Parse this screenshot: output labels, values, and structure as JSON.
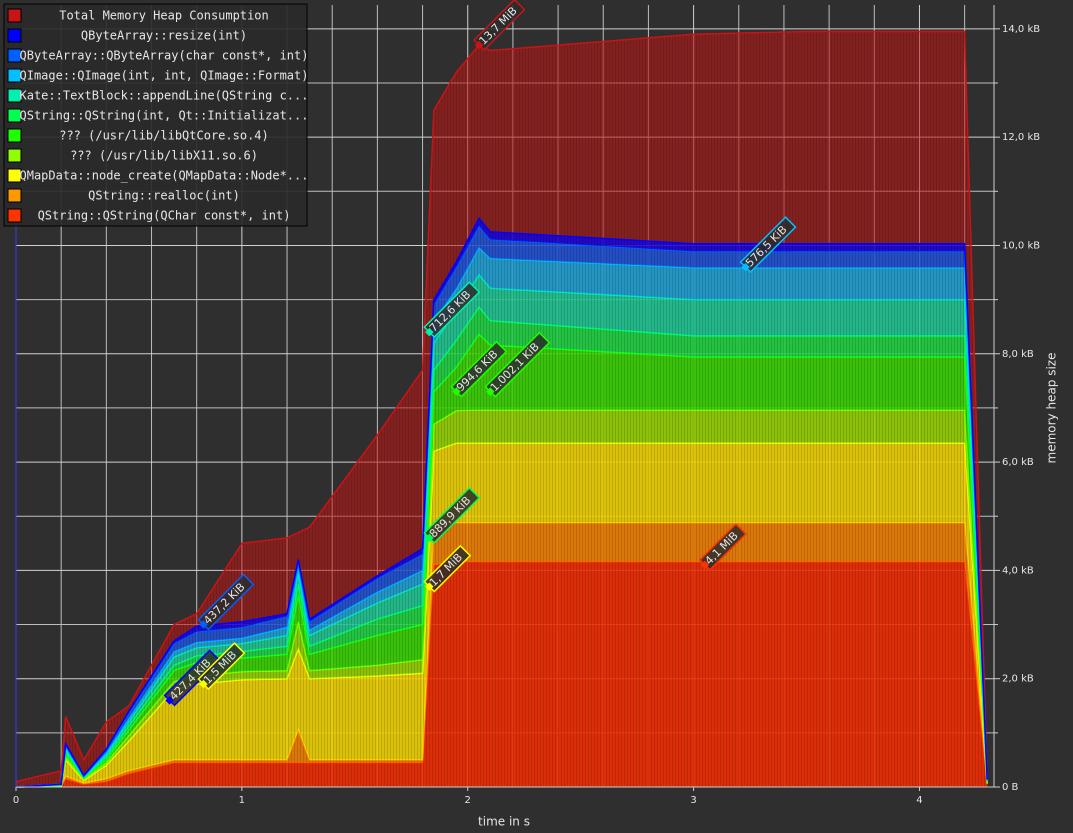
{
  "chart_data": {
    "type": "stacked-area",
    "xlabel": "time in s",
    "ylabel": "memory heap size",
    "x": [
      0,
      0.2,
      0.22,
      0.3,
      0.4,
      0.5,
      0.7,
      0.8,
      1.0,
      1.2,
      1.25,
      1.3,
      1.6,
      1.8,
      1.85,
      1.95,
      2.05,
      2.1,
      3.0,
      3.5,
      4.2,
      4.3
    ],
    "total": {
      "name": "Total Memory Heap Consumption",
      "color": "#c81414",
      "values": [
        0.1,
        0.3,
        1.3,
        0.5,
        1.2,
        1.5,
        3.0,
        3.2,
        4.5,
        4.6,
        4.7,
        4.8,
        6.5,
        7.7,
        12.5,
        13.2,
        13.7,
        13.6,
        13.9,
        13.95,
        13.95,
        0.1
      ]
    },
    "series": [
      {
        "name": "QByteArray::resize(int)",
        "color": "#0000ff",
        "values": [
          0,
          0,
          0.03,
          0.01,
          0.03,
          0.03,
          0.05,
          0.1,
          0.1,
          0.05,
          0.05,
          0.05,
          0.05,
          0.1,
          0.1,
          0.1,
          0.14,
          0.14,
          0.14,
          0.14,
          0.14,
          0.01
        ]
      },
      {
        "name": "QByteArray::QByteArray(char const*, int)",
        "color": "#0060ff",
        "values": [
          0,
          0,
          0.04,
          0.01,
          0.04,
          0.1,
          0.15,
          0.2,
          0.2,
          0.2,
          0.1,
          0.15,
          0.25,
          0.3,
          0.3,
          0.4,
          0.4,
          0.35,
          0.3,
          0.3,
          0.3,
          0.01
        ]
      },
      {
        "name": "QImage::QImage(int, int, QImage::Format)",
        "color": "#00c0ff",
        "values": [
          0,
          0,
          0.03,
          0.01,
          0.03,
          0.06,
          0.1,
          0.1,
          0.1,
          0.15,
          0.1,
          0.1,
          0.2,
          0.25,
          0.4,
          0.4,
          0.5,
          0.55,
          0.59,
          0.59,
          0.59,
          0.01
        ]
      },
      {
        "name": "Kate::TextBlock::appendLine(QString c...",
        "color": "#00f0b0",
        "values": [
          0,
          0.01,
          0.05,
          0.01,
          0.05,
          0.08,
          0.15,
          0.15,
          0.15,
          0.2,
          0.2,
          0.2,
          0.3,
          0.4,
          0.5,
          0.55,
          0.6,
          0.6,
          0.67,
          0.67,
          0.67,
          0.01
        ]
      },
      {
        "name": "QString::QString(int, Qt::Initializat...",
        "color": "#00ff50",
        "values": [
          0,
          0.01,
          0.05,
          0.01,
          0.05,
          0.08,
          0.1,
          0.12,
          0.12,
          0.15,
          0.2,
          0.15,
          0.3,
          0.35,
          0.4,
          0.5,
          0.5,
          0.45,
          0.39,
          0.39,
          0.39,
          0.01
        ]
      },
      {
        "name": "??? (/usr/lib/libQtCore.so.4)",
        "color": "#20ff00",
        "values": [
          0,
          0.01,
          0.05,
          0.02,
          0.05,
          0.1,
          0.2,
          0.25,
          0.25,
          0.3,
          0.5,
          0.3,
          0.55,
          0.65,
          0.6,
          0.8,
          1.4,
          1.2,
          0.98,
          0.98,
          0.98,
          0.01
        ]
      },
      {
        "name": "??? (/usr/lib/libX11.so.6)",
        "color": "#90ff00",
        "values": [
          0,
          0,
          0.05,
          0.02,
          0.05,
          0.1,
          0.15,
          0.15,
          0.15,
          0.15,
          0.5,
          0.15,
          0.2,
          0.25,
          0.5,
          0.6,
          0.61,
          0.61,
          0.61,
          0.61,
          0.61,
          0.01
        ]
      },
      {
        "name": "QMapData::node_create(QMapData::Node*...",
        "color": "#ffff00",
        "values": [
          0,
          0,
          0.3,
          0.05,
          0.25,
          0.55,
          1.3,
          1.4,
          1.48,
          1.5,
          1.5,
          1.5,
          1.55,
          1.6,
          1.4,
          1.47,
          1.47,
          1.47,
          1.47,
          1.47,
          1.47,
          0.01
        ]
      },
      {
        "name": "QString::realloc(int)",
        "color": "#ff9900",
        "values": [
          0,
          0,
          0.05,
          0.02,
          0.05,
          0.05,
          0.05,
          0.05,
          0.05,
          0.05,
          0.6,
          0.05,
          0.05,
          0.05,
          0.7,
          0.72,
          0.72,
          0.72,
          0.72,
          0.72,
          0.72,
          0.01
        ]
      },
      {
        "name": "QString::QString(QChar const*, int)",
        "color": "#ff3300",
        "values": [
          0,
          0.02,
          0.15,
          0.05,
          0.1,
          0.25,
          0.45,
          0.45,
          0.45,
          0.45,
          0.45,
          0.45,
          0.45,
          0.45,
          4.1,
          4.16,
          4.16,
          4.16,
          4.16,
          4.16,
          4.16,
          0.05
        ]
      }
    ],
    "annotations": [
      {
        "text": "13,7 MiB",
        "x": 2.05,
        "y": 13.7,
        "series": -1
      },
      {
        "text": "576,5 KiB",
        "x": 3.23,
        "y": 9.6,
        "series": 2
      },
      {
        "text": "712,6 KiB",
        "x": 1.83,
        "y": 8.4,
        "series": 3
      },
      {
        "text": "994,6 KiB",
        "x": 1.95,
        "y": 7.3,
        "series": 5
      },
      {
        "text": "1.002,1 KiB",
        "x": 2.1,
        "y": 7.3,
        "series": 5
      },
      {
        "text": "889,9 KiB",
        "x": 1.83,
        "y": 4.6,
        "series": 4
      },
      {
        "text": "1,7 MiB",
        "x": 1.83,
        "y": 3.7,
        "series": 7
      },
      {
        "text": "4,1 MiB",
        "x": 3.05,
        "y": 4.1,
        "series": 9
      },
      {
        "text": "437,2 KiB",
        "x": 0.83,
        "y": 3.0,
        "series": 1
      },
      {
        "text": "427,4 KiB",
        "x": 0.68,
        "y": 1.6,
        "series": 0
      },
      {
        "text": "1,5 MiB",
        "x": 0.83,
        "y": 1.9,
        "series": 7
      }
    ],
    "xlim": [
      0,
      4.33
    ],
    "ylim": [
      0,
      14.44
    ],
    "xticks": [
      0,
      1,
      2,
      3,
      4
    ],
    "minor_xticks": [
      0.2,
      0.4,
      0.6,
      0.8,
      1.2,
      1.4,
      1.6,
      1.8,
      2.2,
      2.4,
      2.6,
      2.8,
      3.2,
      3.4,
      3.6,
      3.8,
      4.2
    ],
    "yticks": [
      {
        "value": 0,
        "label": "0 B"
      },
      {
        "value": 2,
        "label": "2,0 kB"
      },
      {
        "value": 4,
        "label": "4,0 kB"
      },
      {
        "value": 6,
        "label": "6,0 kB"
      },
      {
        "value": 8,
        "label": "8,0 kB"
      },
      {
        "value": 10,
        "label": "10,0 kB"
      },
      {
        "value": 12,
        "label": "12,0 kB"
      },
      {
        "value": 14,
        "label": "14,0 kB"
      }
    ],
    "minor_yticks": [
      1,
      3,
      5,
      7,
      9,
      11,
      13
    ],
    "grid": true,
    "legend": "top-left"
  }
}
